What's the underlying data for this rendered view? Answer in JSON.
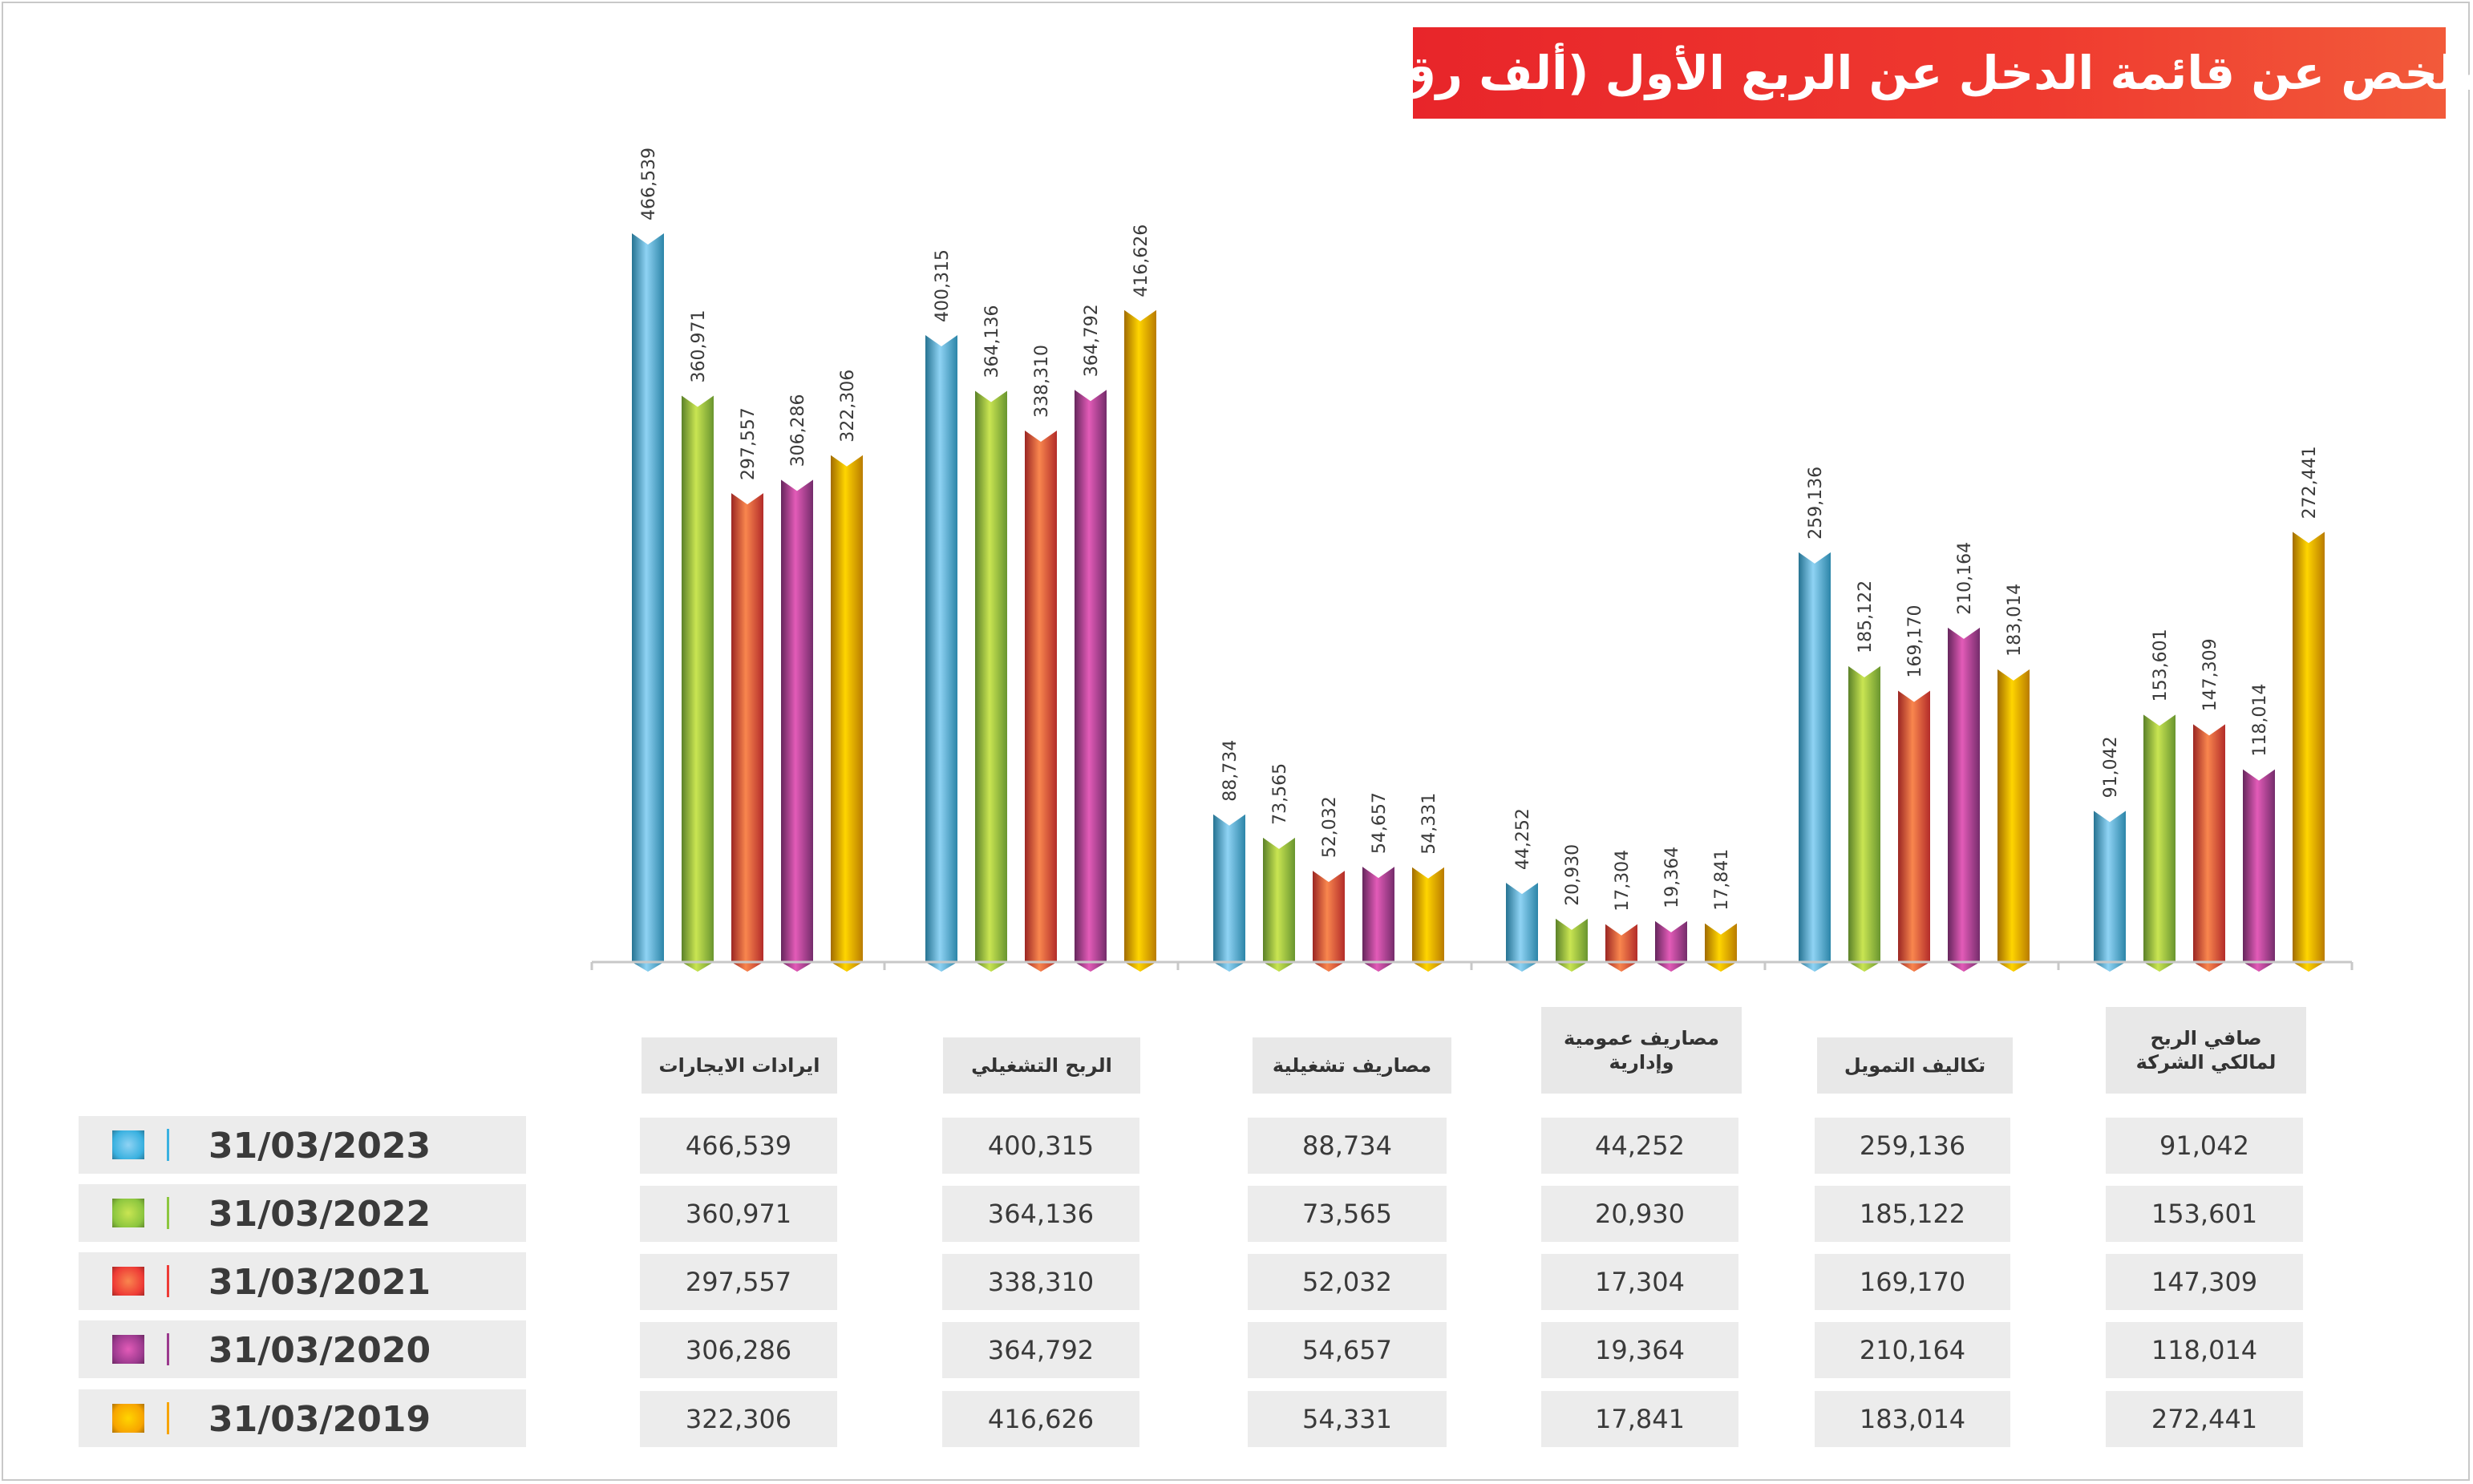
{
  "title": "ملخص عن قائمة الدخل عن الربع الأول (ألف رق)",
  "chart_data": {
    "type": "bar",
    "title": "ملخص عن قائمة الدخل عن الربع الأول (ألف رق)",
    "categories": [
      "ايرادات الايجارات",
      "الربح التشغيلي",
      "مصاريف تشغيلية",
      "مصاريف عمومية وإدارية",
      "تكاليف التمويل",
      "صافي الربح لمالكي الشركة"
    ],
    "series": [
      {
        "name": "31/03/2023",
        "color": "#3ab1e0",
        "values": [
          466539,
          400315,
          88734,
          44252,
          259136,
          91042
        ]
      },
      {
        "name": "31/03/2022",
        "color": "#8cc63f",
        "values": [
          360971,
          364136,
          73565,
          20930,
          185122,
          153601
        ]
      },
      {
        "name": "31/03/2021",
        "color": "#ee3b36",
        "values": [
          297557,
          338310,
          52032,
          17304,
          169170,
          147309
        ]
      },
      {
        "name": "31/03/2020",
        "color": "#9b3a8e",
        "values": [
          306286,
          364792,
          54657,
          19364,
          210164,
          118014
        ]
      },
      {
        "name": "31/03/2019",
        "color": "#f7a400",
        "values": [
          322306,
          416626,
          54331,
          17841,
          183014,
          272441
        ]
      }
    ],
    "value_labels": [
      [
        "466,539",
        "400,315",
        "88,734",
        "44,252",
        "259,136",
        "91,042"
      ],
      [
        "360,971",
        "364,136",
        "73,565",
        "20,930",
        "185,122",
        "153,601"
      ],
      [
        "297,557",
        "338,310",
        "52,032",
        "17,304",
        "169,170",
        "147,309"
      ],
      [
        "306,286",
        "364,792",
        "54,657",
        "19,364",
        "210,164",
        "118,014"
      ],
      [
        "322,306",
        "416,626",
        "54,331",
        "17,841",
        "183,014",
        "272,441"
      ]
    ],
    "ylim": [
      0,
      466539
    ],
    "grid": false,
    "legend": "bottom-left table"
  },
  "cat_label_lines": [
    [
      "ايرادات الايجارات"
    ],
    [
      "الربح التشغيلي"
    ],
    [
      "مصاريف تشغيلية"
    ],
    [
      "مصاريف عمومية",
      "وإدارية"
    ],
    [
      "تكاليف التمويل"
    ],
    [
      "صافي الربح",
      "لمالكي الشركة"
    ]
  ]
}
